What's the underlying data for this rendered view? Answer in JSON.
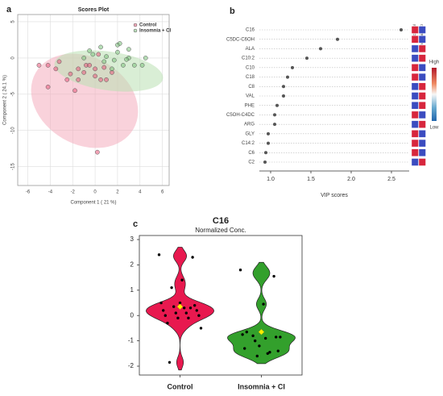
{
  "chart_data": [
    {
      "type": "scatter",
      "panel_label": "a",
      "title": "Scores Plot",
      "xlabel": "Component 1 ( 21 %)",
      "ylabel": "Component 2 ( 24.1 %)",
      "xlim": [
        -6.9,
        6.6
      ],
      "ylim": [
        -17.6,
        6
      ],
      "xticks": [
        -6,
        -4,
        -2,
        0,
        2,
        4,
        6
      ],
      "yticks": [
        5,
        0,
        -5,
        -10,
        -15
      ],
      "grid": true,
      "series": [
        {
          "name": "Control",
          "color": "#e8577a",
          "x": [
            -5,
            -4.2,
            -3.5,
            -3.2,
            -4.2,
            -2.5,
            -1.8,
            -1.5,
            -1,
            -0.8,
            0,
            0.5,
            1,
            0.3,
            -0.5,
            1.5,
            0,
            0.2,
            -1.5,
            0.8,
            -2.2
          ],
          "y": [
            -1,
            -1,
            -1.5,
            -0.5,
            -4,
            -3,
            -4.5,
            -3,
            -2,
            -1,
            -2.5,
            -3,
            -3,
            0.5,
            -1,
            -2,
            -1.5,
            -13,
            -1.5,
            -1.3,
            -2.2
          ]
        },
        {
          "name": "Insomnia + CI",
          "color": "#7cc27c",
          "x": [
            -0.5,
            0.5,
            1,
            2,
            2,
            2.5,
            3,
            3.5,
            4.2,
            4.5,
            1.5,
            2.2,
            3,
            -1,
            0.8,
            1.7,
            -0.2,
            2.8
          ],
          "y": [
            1,
            1.5,
            0.2,
            0.8,
            1.8,
            -1,
            0,
            -1,
            -1,
            0,
            -1.5,
            2,
            1.2,
            0,
            -0.5,
            -0.3,
            0.5,
            -0.2
          ]
        }
      ]
    },
    {
      "type": "dot",
      "panel_label": "b",
      "xlabel": "VIP scores",
      "categories": [
        "C16",
        "C5DC-C6OH",
        "ALA",
        "C10:2",
        "C10",
        "C18",
        "C8",
        "VAL",
        "PHE",
        "C5OH-C4DC",
        "ARG",
        "GLY",
        "C14:2",
        "C6",
        "C2"
      ],
      "values": [
        2.62,
        1.83,
        1.62,
        1.45,
        1.27,
        1.21,
        1.16,
        1.16,
        1.08,
        1.05,
        1.05,
        0.97,
        0.97,
        0.94,
        0.93
      ],
      "color": "#555555",
      "xlim": [
        0.86,
        2.72
      ],
      "xticks": [
        {
          "value": 1,
          "label": "1.0"
        },
        {
          "value": 1.5,
          "label": "1.5"
        },
        {
          "value": 2,
          "label": "2.0"
        },
        {
          "value": 2.5,
          "label": "2.5"
        }
      ],
      "heatmap_columns": [
        "Control",
        "Insomnia + CI"
      ],
      "heatmap_colors": [
        [
          "#d7263d",
          "#3b4cc0"
        ],
        [
          "#d7263d",
          "#3b4cc0"
        ],
        [
          "#3b4cc0",
          "#d7263d"
        ],
        [
          "#3b4cc0",
          "#d7263d"
        ],
        [
          "#d7263d",
          "#3b4cc0"
        ],
        [
          "#d7263d",
          "#3b4cc0"
        ],
        [
          "#3b4cc0",
          "#d7263d"
        ],
        [
          "#3b4cc0",
          "#d7263d"
        ],
        [
          "#3b4cc0",
          "#d7263d"
        ],
        [
          "#d7263d",
          "#3b4cc0"
        ],
        [
          "#3b4cc0",
          "#d7263d"
        ],
        [
          "#d7263d",
          "#3b4cc0"
        ],
        [
          "#d7263d",
          "#3b4cc0"
        ],
        [
          "#d7263d",
          "#3b4cc0"
        ],
        [
          "#3b4cc0",
          "#d7263d"
        ]
      ],
      "colorbar_labels": [
        "High",
        "Low"
      ]
    },
    {
      "type": "violin",
      "panel_label": "c",
      "title": "C16",
      "subtitle": "Normalized Conc.",
      "categories": [
        "Control",
        "Insomnia + CI"
      ],
      "colors": [
        "#e8194f",
        "#33a02c"
      ],
      "values": [
        [
          2.4,
          2.3,
          1.4,
          1.1,
          0.5,
          0.4,
          0.3,
          0.35,
          0.2,
          0.2,
          0.1,
          0.1,
          0.0,
          0.0,
          -0.1,
          -0.1,
          -0.3,
          -0.5,
          0.3,
          0.5,
          -1.85
        ],
        [
          1.8,
          1.55,
          0.45,
          -0.8,
          -0.75,
          -0.85,
          -0.9,
          -1.0,
          -1.3,
          -1.4,
          -1.5,
          -1.6,
          -0.65,
          -0.85,
          -1.45,
          -1.2
        ]
      ],
      "means": [
        0.35,
        -0.65
      ],
      "ylim": [
        -2.35,
        3.16
      ],
      "yticks": [
        -2,
        -1,
        0,
        1,
        2,
        3
      ]
    }
  ]
}
